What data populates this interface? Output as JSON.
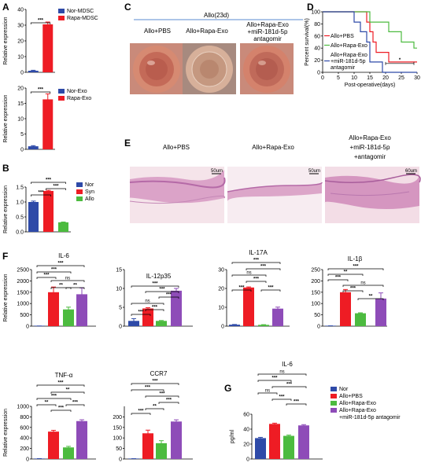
{
  "colors": {
    "nor": "#2e4aa8",
    "rapa": "#ee1c24",
    "green": "#4cbb3f",
    "purple": "#8e4cb8",
    "cornea_frame": "#cd7a6b",
    "histo_bg": "#f3dde6",
    "histo_tissue": "#d79ac4",
    "histo_dense": "#b56aa7"
  },
  "panels": {
    "A": "A",
    "B": "B",
    "C": "C",
    "D": "D",
    "E": "E",
    "F": "F",
    "G": "G"
  },
  "panel_C": {
    "header": "Allo(23d)",
    "labels": [
      "Allo+PBS",
      "Allo+Rapa-Exo",
      "Allo+Rapa-Exo",
      "+miR-181d-5p",
      "antagomir"
    ]
  },
  "panel_E": {
    "labels": [
      "Allo+PBS",
      "Allo+Rapa-Exo",
      "Allo+Rapa-Exo",
      "+miR-181d-5p",
      "+antagomir"
    ],
    "scale_bars": [
      "50um",
      "50um",
      "60um"
    ]
  },
  "chart_data": [
    {
      "id": "A1",
      "type": "bar",
      "ylabel": "Relative expression",
      "categories": [
        "Nor-MDSC",
        "Rapa-MDSC"
      ],
      "values": [
        1,
        30.5
      ],
      "errors": [
        0.3,
        1.5
      ],
      "ylim": [
        0,
        40
      ],
      "yticks": [
        "0",
        "10",
        "20",
        "30",
        "40"
      ],
      "legend": [
        "Nor-MDSC",
        "Rapa-MDSC"
      ],
      "significance": [
        {
          "pair": [
            0,
            1
          ],
          "label": "***"
        }
      ]
    },
    {
      "id": "A2",
      "type": "bar",
      "ylabel": "Relative expression",
      "categories": [
        "Nor-Exo",
        "Rapa-Exo"
      ],
      "values": [
        1,
        16.3
      ],
      "errors": [
        0.2,
        1.8
      ],
      "ylim": [
        0,
        20
      ],
      "yticks": [
        "0",
        "5",
        "10",
        "15",
        "20"
      ],
      "legend": [
        "Nor-Exo",
        "Rapa-Exo"
      ],
      "significance": [
        {
          "pair": [
            0,
            1
          ],
          "label": "***"
        }
      ]
    },
    {
      "id": "B",
      "type": "bar",
      "ylabel": "Relative expression",
      "categories": [
        "Nor",
        "Syn",
        "Allo"
      ],
      "values": [
        1.0,
        1.37,
        0.32
      ],
      "errors": [
        0.03,
        0.02,
        0.01
      ],
      "ylim": [
        0,
        1.5
      ],
      "yticks": [
        "0.0",
        "0.5",
        "1.0",
        "1.5"
      ],
      "legend": [
        "Nor",
        "Syn",
        "Allo"
      ],
      "significance": [
        {
          "pair": [
            0,
            1
          ],
          "label": "***"
        },
        {
          "pair": [
            1,
            2
          ],
          "label": "***"
        },
        {
          "pair": [
            0,
            2
          ],
          "label": "***"
        }
      ]
    },
    {
      "id": "D",
      "type": "line",
      "xlabel": "Post-operative(days)",
      "ylabel": "Percent survival(%)",
      "xlim": [
        0,
        30
      ],
      "ylim": [
        0,
        100
      ],
      "xticks": [
        "0",
        "5",
        "10",
        "15",
        "20",
        "25",
        "30"
      ],
      "yticks": [
        "0",
        "20",
        "40",
        "60",
        "80",
        "100"
      ],
      "series": [
        {
          "name": "Allo+PBS",
          "x": [
            0,
            14,
            14,
            15,
            15,
            16,
            16,
            17,
            17,
            21,
            21,
            30
          ],
          "y": [
            100,
            100,
            83,
            83,
            67,
            67,
            50,
            50,
            33,
            33,
            17,
            17
          ]
        },
        {
          "name": "Allo+Rapa-Exo",
          "x": [
            0,
            15,
            15,
            21,
            21,
            25,
            25,
            29,
            29,
            30
          ],
          "y": [
            100,
            100,
            83,
            83,
            67,
            67,
            50,
            50,
            40,
            40
          ]
        },
        {
          "name": "Allo+Rapa-Exo +miR-181d-5p antagomir",
          "x": [
            0,
            10,
            10,
            12,
            12,
            14,
            14,
            15,
            15,
            19,
            19,
            30
          ],
          "y": [
            100,
            100,
            83,
            83,
            67,
            67,
            50,
            50,
            17,
            17,
            0,
            0
          ]
        }
      ],
      "legend": [
        "Allo+PBS",
        "Allo+Rapa-Exo",
        "Allo+Rapa-Exo",
        "+miR-181d-5p",
        "antagomir"
      ],
      "significance": [
        {
          "label": "*"
        }
      ]
    },
    {
      "id": "F1",
      "type": "bar",
      "title": "IL-6",
      "ylabel": "Relative expression",
      "categories": [
        "Nor",
        "Allo+PBS",
        "Allo+Rapa-Exo",
        "Allo+Rapa-Exo +miR-181d-5p antagomir"
      ],
      "values": [
        5,
        1500,
        740,
        1410
      ],
      "errors": [
        2,
        230,
        100,
        280
      ],
      "ylim": [
        0,
        2500
      ],
      "yticks": [
        "0",
        "500",
        "1000",
        "1500",
        "2000",
        "2500"
      ],
      "significance": [
        {
          "pair": [
            0,
            3
          ],
          "label": "***"
        },
        {
          "pair": [
            0,
            2
          ],
          "label": "***"
        },
        {
          "pair": [
            0,
            1
          ],
          "label": "***"
        },
        {
          "pair": [
            1,
            2
          ],
          "label": "**"
        },
        {
          "pair": [
            1,
            3
          ],
          "label": "ns"
        },
        {
          "pair": [
            2,
            3
          ],
          "label": "**"
        }
      ]
    },
    {
      "id": "F2",
      "type": "bar",
      "title": "IL-12p35",
      "categories": [
        "Nor",
        "Allo+PBS",
        "Allo+Rapa-Exo",
        "Allo+Rapa-Exo +miR-181d-5p antagomir"
      ],
      "values": [
        1.4,
        4.7,
        1.4,
        9.4
      ],
      "errors": [
        0.6,
        0.2,
        0.1,
        0.6
      ],
      "ylim": [
        0,
        15
      ],
      "yticks": [
        "0",
        "5",
        "10",
        "15"
      ],
      "significance": [
        {
          "pair": [
            0,
            3
          ],
          "label": "***"
        },
        {
          "pair": [
            1,
            3
          ],
          "label": "***"
        },
        {
          "pair": [
            2,
            3
          ],
          "label": "***"
        },
        {
          "pair": [
            0,
            2
          ],
          "label": "ns"
        },
        {
          "pair": [
            1,
            2
          ],
          "label": "***"
        },
        {
          "pair": [
            0,
            1
          ],
          "label": "***"
        }
      ]
    },
    {
      "id": "F3",
      "type": "bar",
      "title": "IL-17A",
      "categories": [
        "Nor",
        "Allo+PBS",
        "Allo+Rapa-Exo",
        "Allo+Rapa-Exo +miR-181d-5p antagomir"
      ],
      "values": [
        0.8,
        20.5,
        0.7,
        9.3
      ],
      "errors": [
        0.1,
        0.3,
        0.1,
        0.8
      ],
      "ylim": [
        0,
        30
      ],
      "yticks": [
        "0",
        "10",
        "20",
        "30"
      ],
      "significance": [
        {
          "pair": [
            0,
            3
          ],
          "label": "***"
        },
        {
          "pair": [
            1,
            3
          ],
          "label": "***"
        },
        {
          "pair": [
            0,
            2
          ],
          "label": "ns"
        },
        {
          "pair": [
            1,
            2
          ],
          "label": "***"
        },
        {
          "pair": [
            0,
            1
          ],
          "label": "***"
        },
        {
          "pair": [
            2,
            3
          ],
          "label": "***"
        }
      ]
    },
    {
      "id": "F4",
      "type": "bar",
      "title": "IL-1β",
      "categories": [
        "Nor",
        "Allo+PBS",
        "Allo+Rapa-Exo",
        "Allo+Rapa-Exo +miR-181d-5p antagomir"
      ],
      "values": [
        1,
        150,
        57,
        122
      ],
      "errors": [
        0.5,
        12,
        2,
        25
      ],
      "ylim": [
        0,
        250
      ],
      "yticks": [
        "0",
        "50",
        "100",
        "150",
        "200",
        "250"
      ],
      "significance": [
        {
          "pair": [
            0,
            3
          ],
          "label": "***"
        },
        {
          "pair": [
            0,
            2
          ],
          "label": "**"
        },
        {
          "pair": [
            0,
            1
          ],
          "label": "***"
        },
        {
          "pair": [
            1,
            3
          ],
          "label": "ns"
        },
        {
          "pair": [
            1,
            2
          ],
          "label": "***"
        },
        {
          "pair": [
            2,
            3
          ],
          "label": "**"
        }
      ]
    },
    {
      "id": "F5",
      "type": "bar",
      "title": "TNF-α",
      "ylabel": "Relative expression",
      "categories": [
        "Nor",
        "Allo+PBS",
        "Allo+Rapa-Exo",
        "Allo+Rapa-Exo +miR-181d-5p antagomir"
      ],
      "values": [
        5,
        520,
        220,
        720
      ],
      "errors": [
        2,
        25,
        20,
        25
      ],
      "ylim": [
        0,
        1000
      ],
      "yticks": [
        "0",
        "200",
        "400",
        "600",
        "800",
        "1000"
      ],
      "significance": [
        {
          "pair": [
            0,
            3
          ],
          "label": "***"
        },
        {
          "pair": [
            1,
            3
          ],
          "label": "**"
        },
        {
          "pair": [
            0,
            2
          ],
          "label": "***"
        },
        {
          "pair": [
            0,
            1
          ],
          "label": "**"
        },
        {
          "pair": [
            1,
            2
          ],
          "label": "***"
        },
        {
          "pair": [
            2,
            3
          ],
          "label": "***"
        }
      ]
    },
    {
      "id": "F6",
      "type": "bar",
      "title": "CCR7",
      "categories": [
        "Nor",
        "Allo+PBS",
        "Allo+Rapa-Exo",
        "Allo+Rapa-Exo +miR-181d-5p antagomir"
      ],
      "values": [
        1,
        122,
        75,
        178
      ],
      "errors": [
        0.5,
        15,
        12,
        8
      ],
      "ylim": [
        0,
        250
      ],
      "yticks": [
        "0",
        "50",
        "100",
        "150",
        "200"
      ],
      "significance": [
        {
          "pair": [
            0,
            3
          ],
          "label": "***"
        },
        {
          "pair": [
            0,
            2
          ],
          "label": "***"
        },
        {
          "pair": [
            1,
            3
          ],
          "label": "***"
        },
        {
          "pair": [
            2,
            3
          ],
          "label": "***"
        },
        {
          "pair": [
            1,
            2
          ],
          "label": "**"
        },
        {
          "pair": [
            0,
            1
          ],
          "label": "***"
        }
      ]
    },
    {
      "id": "G",
      "type": "bar",
      "title": "IL-6",
      "ylabel": "pg/ml",
      "categories": [
        "Nor",
        "Allo+PBS",
        "Allo+Rapa-Exo",
        "Allo+Rapa-Exo +miR-181d-5p antagomir"
      ],
      "values": [
        28,
        47,
        31,
        45
      ],
      "errors": [
        1,
        1,
        1,
        1
      ],
      "ylim": [
        0,
        60
      ],
      "yticks": [
        "0",
        "20",
        "40",
        "60"
      ],
      "legend": [
        "Nor",
        "Allo+PBS",
        "Allo+Rapa-Exo",
        "Allo+Rapa-Exo",
        "+miR-181d-5p antagomir"
      ],
      "significance": [
        {
          "pair": [
            0,
            3
          ],
          "label": "ns"
        },
        {
          "pair": [
            0,
            2
          ],
          "label": "***"
        },
        {
          "pair": [
            1,
            3
          ],
          "label": "***"
        },
        {
          "pair": [
            0,
            1
          ],
          "label": "ns"
        },
        {
          "pair": [
            1,
            2
          ],
          "label": "***"
        },
        {
          "pair": [
            2,
            3
          ],
          "label": "***"
        }
      ]
    }
  ]
}
